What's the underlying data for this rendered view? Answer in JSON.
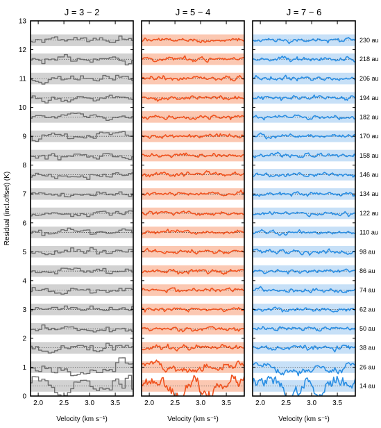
{
  "chart_data": {
    "type": "line",
    "ylabel": "Residual (incl.offset)   (K)",
    "xlabel": "Velocity   (km s⁻¹)",
    "ylim": [
      0,
      13
    ],
    "yticks": [
      0,
      1,
      2,
      3,
      4,
      5,
      6,
      7,
      8,
      9,
      10,
      11,
      12,
      13
    ],
    "xlim": [
      1.85,
      3.85
    ],
    "xticks": [
      2.0,
      2.5,
      3.0,
      3.5
    ],
    "xtick_labels": [
      "2.0",
      "2.5",
      "3.0",
      "3.5"
    ],
    "radius_labels": [
      "14 au",
      "26 au",
      "38 au",
      "50 au",
      "62 au",
      "74 au",
      "86 au",
      "98 au",
      "110 au",
      "122 au",
      "134 au",
      "146 au",
      "158 au",
      "170 au",
      "182 au",
      "194 au",
      "206 au",
      "218 au",
      "230 au"
    ],
    "offsets": [
      0.35,
      1.0,
      1.67,
      2.33,
      3.0,
      3.67,
      4.33,
      5.0,
      5.67,
      6.33,
      7.0,
      7.67,
      8.33,
      9.0,
      9.67,
      10.33,
      11.0,
      11.67,
      12.33
    ],
    "noise_band_halfwidth": 0.2,
    "grid": false,
    "panels": [
      {
        "title": "J = 3 − 2",
        "color": "#6e6e6e",
        "band_color": "#d2d2d2",
        "style": "steps",
        "noise": 0.12,
        "seed": 11
      },
      {
        "title": "J = 5 − 4",
        "color": "#f0521e",
        "band_color": "#fbc8b2",
        "style": "line",
        "noise": 0.07,
        "seed": 23
      },
      {
        "title": "J = 7 − 6",
        "color": "#2a8ee3",
        "band_color": "#c7e0f7",
        "style": "line",
        "noise": 0.07,
        "seed": 37
      }
    ]
  }
}
